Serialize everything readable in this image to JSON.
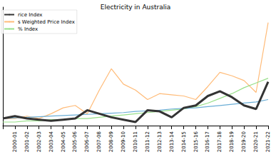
{
  "chart_data": {
    "type": "line",
    "title": "Electricity in Australia",
    "categories": [
      null,
      "2000-01",
      "2001-02",
      "2002-03",
      "2003-04",
      "2004-05",
      "2005-06",
      "2006-07",
      "2007-08",
      "2008-09",
      "2009-10",
      "2010-11",
      "2011-12",
      "2012-13",
      "2013-14",
      "2014-15",
      "2015-16",
      "2016-17",
      "2017-18",
      "2018-19",
      "2019-20",
      "2020-21",
      "2021-22"
    ],
    "series": [
      {
        "name": "rice Index",
        "color": "#333333",
        "values": [
          6,
          8,
          6,
          5,
          4,
          5,
          6,
          13,
          10,
          7,
          5,
          3,
          13,
          12,
          7,
          15,
          17,
          25,
          29,
          24,
          17,
          14,
          37
        ]
      },
      {
        "name": "s Weighted Price Index",
        "color": "#ffbb78",
        "values": [
          6,
          6,
          8,
          6,
          10,
          15,
          17,
          10,
          30,
          48,
          35,
          30,
          22,
          27,
          26,
          25,
          22,
          33,
          45,
          42,
          38,
          28,
          87
        ]
      },
      {
        "name": "% Index",
        "color": "#98df8a",
        "values": [
          3,
          3,
          4,
          4,
          5,
          5,
          6,
          6,
          7,
          8,
          9,
          10,
          11,
          12,
          13,
          14,
          16,
          19,
          23,
          27,
          32,
          36,
          40
        ]
      },
      {
        "color": "#6baed6",
        "values": [
          6,
          6.5,
          7,
          7.5,
          8,
          8.5,
          9,
          9.5,
          10,
          10.5,
          11,
          12,
          12.5,
          13,
          14,
          14.5,
          15,
          16,
          17,
          18,
          19,
          20,
          22
        ]
      }
    ],
    "ylim": [
      0,
      100
    ],
    "yticks": [],
    "grid": false,
    "legend": "upper left",
    "tick_labels": "x"
  }
}
